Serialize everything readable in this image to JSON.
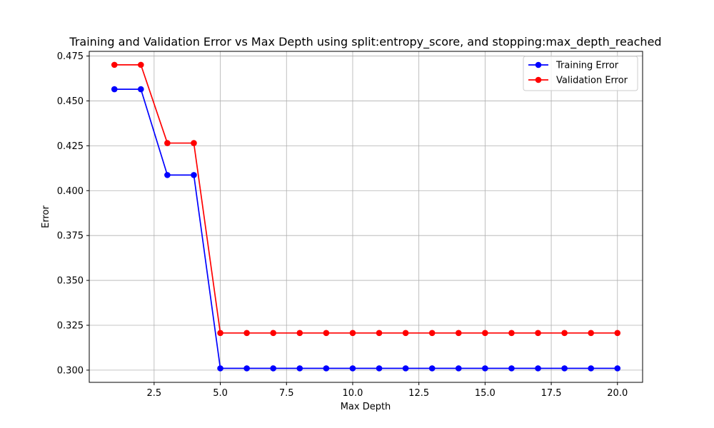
{
  "chart_data": {
    "type": "line",
    "title": "Training and Validation Error vs Max Depth using split:entropy_score, and stopping:max_depth_reached",
    "xlabel": "Max Depth",
    "ylabel": "Error",
    "x": [
      1,
      2,
      3,
      4,
      5,
      6,
      7,
      8,
      9,
      10,
      11,
      12,
      13,
      14,
      15,
      16,
      17,
      18,
      19,
      20
    ],
    "xlim": [
      0.05,
      20.95
    ],
    "ylim": [
      0.2932,
      0.4776
    ],
    "xticks": [
      2.5,
      5.0,
      7.5,
      10.0,
      12.5,
      15.0,
      17.5,
      20.0
    ],
    "xtick_labels": [
      "2.5",
      "5.0",
      "7.5",
      "10.0",
      "12.5",
      "15.0",
      "17.5",
      "20.0"
    ],
    "yticks": [
      0.3,
      0.325,
      0.35,
      0.375,
      0.4,
      0.425,
      0.45,
      0.475
    ],
    "ytick_labels": [
      "0.300",
      "0.325",
      "0.350",
      "0.375",
      "0.400",
      "0.425",
      "0.450",
      "0.475"
    ],
    "grid": true,
    "legend_position": "top-right",
    "series": [
      {
        "name": "Training Error",
        "color": "#0000ff",
        "marker": "circle",
        "values": [
          0.4565,
          0.4565,
          0.4087,
          0.4087,
          0.301,
          0.301,
          0.301,
          0.301,
          0.301,
          0.301,
          0.301,
          0.301,
          0.301,
          0.301,
          0.301,
          0.301,
          0.301,
          0.301,
          0.301,
          0.301
        ]
      },
      {
        "name": "Validation Error",
        "color": "#ff0000",
        "marker": "circle",
        "values": [
          0.4701,
          0.4701,
          0.4265,
          0.4265,
          0.3207,
          0.3207,
          0.3207,
          0.3207,
          0.3207,
          0.3207,
          0.3207,
          0.3207,
          0.3207,
          0.3207,
          0.3207,
          0.3207,
          0.3207,
          0.3207,
          0.3207,
          0.3207
        ]
      }
    ]
  }
}
